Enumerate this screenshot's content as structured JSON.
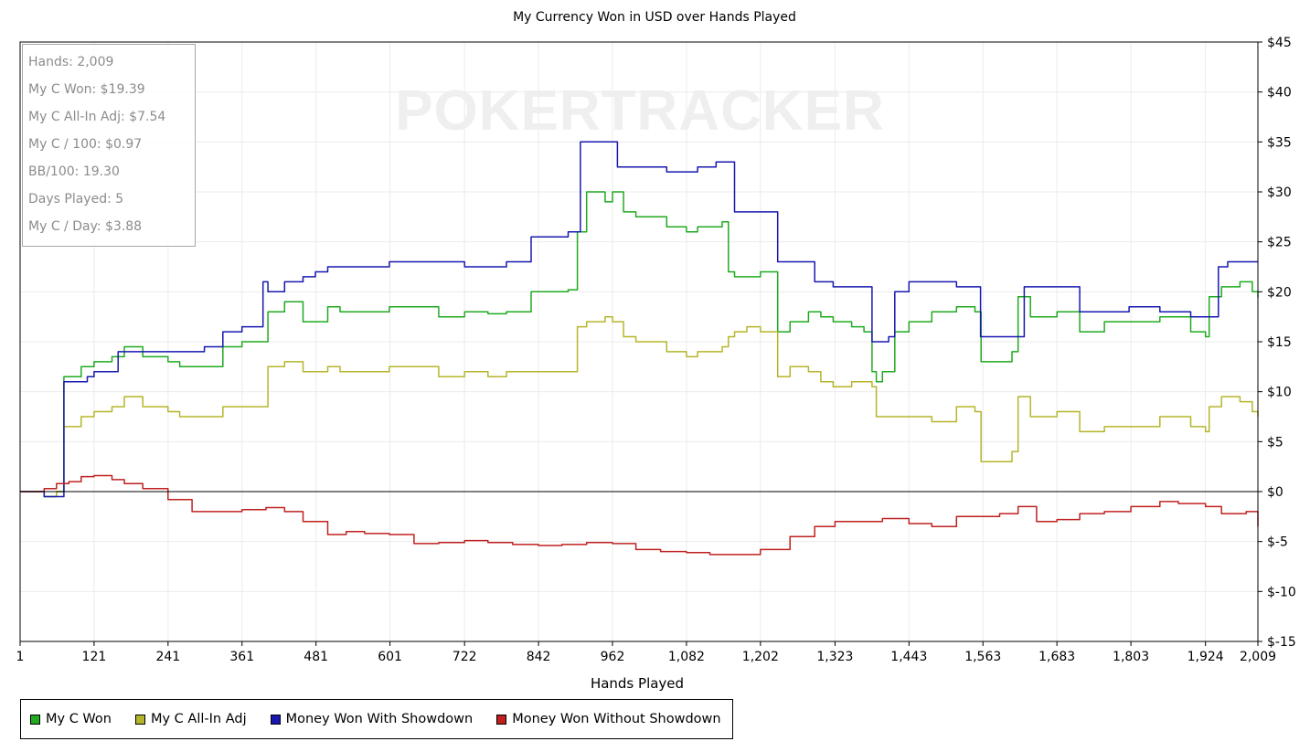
{
  "chart_data": {
    "type": "line",
    "title": "My Currency Won in USD over Hands Played",
    "xlabel": "Hands Played",
    "ylabel": "",
    "xlim": [
      1,
      2009
    ],
    "ylim": [
      -15,
      45
    ],
    "grid": true,
    "legend_position": "bottom",
    "watermark": "POKERTRACKER",
    "x_ticks": [
      1,
      121,
      241,
      361,
      481,
      601,
      722,
      842,
      962,
      1082,
      1202,
      1323,
      1443,
      1563,
      1683,
      1803,
      1924,
      2009
    ],
    "x_tick_labels": [
      "1",
      "121",
      "241",
      "361",
      "481",
      "601",
      "722",
      "842",
      "962",
      "1,082",
      "1,202",
      "1,323",
      "1,443",
      "1,563",
      "1,683",
      "1,803",
      "1,924",
      "2,009"
    ],
    "y_ticks": [
      45,
      40,
      35,
      30,
      25,
      20,
      15,
      10,
      5,
      0,
      -5,
      -10,
      -15
    ],
    "y_tick_labels": [
      "$45",
      "$40",
      "$35",
      "$30",
      "$25",
      "$20",
      "$15",
      "$10",
      "$5",
      "$0",
      "$-5",
      "$-10",
      "$-15"
    ],
    "stats": [
      "Hands: 2,009",
      "My C Won: $19.39",
      "My C All-In Adj: $7.54",
      "My C / 100: $0.97",
      "BB/100: 19.30",
      "Days Played: 5",
      "My C / Day: $3.88"
    ],
    "series": [
      {
        "name": "My C Won",
        "color": "#1faa1f",
        "x": [
          1,
          40,
          60,
          68,
          72,
          100,
          121,
          150,
          170,
          200,
          241,
          260,
          300,
          330,
          361,
          400,
          403,
          430,
          460,
          500,
          520,
          600,
          680,
          722,
          760,
          790,
          830,
          850,
          890,
          905,
          920,
          950,
          962,
          980,
          1000,
          1050,
          1082,
          1100,
          1140,
          1150,
          1160,
          1180,
          1202,
          1230,
          1250,
          1280,
          1300,
          1320,
          1350,
          1370,
          1383,
          1390,
          1400,
          1420,
          1443,
          1480,
          1520,
          1550,
          1560,
          1590,
          1610,
          1620,
          1640,
          1683,
          1700,
          1720,
          1760,
          1800,
          1850,
          1900,
          1924,
          1930,
          1950,
          1980,
          2000,
          2009
        ],
        "y": [
          0,
          -0.5,
          0,
          0,
          11.5,
          12.5,
          13,
          13.5,
          14.5,
          13.5,
          13,
          12.5,
          12.5,
          14.5,
          15,
          15,
          18,
          19,
          17,
          18.5,
          18,
          18.5,
          17.5,
          18,
          17.8,
          18,
          20,
          20,
          20.2,
          26,
          30,
          29,
          30,
          28,
          27.5,
          26.5,
          26,
          26.5,
          27,
          22,
          21.5,
          21.5,
          22,
          16,
          17,
          18,
          17.5,
          17,
          16.5,
          16,
          12,
          11,
          12,
          16,
          17,
          18,
          18.5,
          18,
          13,
          13,
          14,
          19.5,
          17.5,
          18,
          18,
          16,
          17,
          17,
          17.5,
          16,
          15.5,
          19.5,
          20.5,
          21,
          20,
          19.4
        ]
      },
      {
        "name": "My C All-In Adj",
        "color": "#b5b52a",
        "x": [
          1,
          40,
          60,
          68,
          72,
          100,
          121,
          150,
          170,
          200,
          241,
          260,
          300,
          330,
          361,
          400,
          403,
          430,
          460,
          500,
          520,
          600,
          680,
          722,
          760,
          790,
          830,
          850,
          890,
          905,
          920,
          950,
          962,
          980,
          1000,
          1050,
          1082,
          1100,
          1140,
          1150,
          1160,
          1180,
          1202,
          1230,
          1250,
          1280,
          1300,
          1320,
          1350,
          1370,
          1383,
          1390,
          1420,
          1443,
          1480,
          1520,
          1550,
          1560,
          1590,
          1610,
          1620,
          1640,
          1683,
          1700,
          1720,
          1760,
          1800,
          1850,
          1900,
          1924,
          1930,
          1950,
          1980,
          2000,
          2009
        ],
        "y": [
          0,
          -0.5,
          0,
          0,
          6.5,
          7.5,
          8,
          8.5,
          9.5,
          8.5,
          8,
          7.5,
          7.5,
          8.5,
          8.5,
          8.5,
          12.5,
          13,
          12,
          12.5,
          12,
          12.5,
          11.5,
          12,
          11.5,
          12,
          12,
          12,
          12,
          16.5,
          17,
          17.5,
          17,
          15.5,
          15,
          14,
          13.5,
          14,
          14.5,
          15.5,
          16,
          16.5,
          16,
          11.5,
          12.5,
          12,
          11,
          10.5,
          11,
          11,
          10.5,
          7.5,
          7.5,
          7.5,
          7,
          8.5,
          8,
          3,
          3,
          4,
          9.5,
          7.5,
          8,
          8,
          6,
          6.5,
          6.5,
          7.5,
          6.5,
          6,
          8.5,
          9.5,
          9,
          8,
          7.5
        ]
      },
      {
        "name": "Money Won With Showdown",
        "color": "#1818b0",
        "x": [
          1,
          40,
          60,
          68,
          72,
          110,
          121,
          160,
          200,
          241,
          300,
          330,
          361,
          395,
          403,
          430,
          460,
          480,
          500,
          520,
          600,
          680,
          722,
          760,
          790,
          830,
          850,
          890,
          910,
          920,
          960,
          970,
          1000,
          1050,
          1080,
          1100,
          1130,
          1150,
          1160,
          1202,
          1230,
          1270,
          1290,
          1300,
          1320,
          1360,
          1383,
          1410,
          1420,
          1443,
          1520,
          1540,
          1559,
          1600,
          1630,
          1683,
          1720,
          1760,
          1800,
          1850,
          1900,
          1924,
          1945,
          1960,
          2009
        ],
        "y": [
          0,
          -0.5,
          -0.5,
          -0.5,
          11,
          11.5,
          12,
          14,
          14,
          14,
          14.5,
          16,
          16.5,
          21,
          20,
          21,
          21.5,
          22,
          22.5,
          22.5,
          23,
          23,
          22.5,
          22.5,
          23,
          25.5,
          25.5,
          26,
          35,
          35,
          35,
          32.5,
          32.5,
          32,
          32,
          32.5,
          33,
          33,
          28,
          28,
          23,
          23,
          21,
          21,
          20.5,
          20.5,
          15,
          15.5,
          20,
          21,
          20.5,
          20.5,
          15.5,
          15.5,
          20.5,
          20.5,
          18,
          18,
          18.5,
          18,
          17.5,
          17.5,
          22.5,
          23,
          23
        ]
      },
      {
        "name": "Money Won Without Showdown",
        "color": "#c02020",
        "x": [
          1,
          40,
          60,
          80,
          100,
          121,
          150,
          170,
          200,
          241,
          280,
          320,
          361,
          400,
          430,
          460,
          500,
          530,
          560,
          600,
          640,
          680,
          722,
          760,
          800,
          842,
          880,
          920,
          962,
          1000,
          1040,
          1082,
          1120,
          1160,
          1202,
          1250,
          1290,
          1323,
          1360,
          1400,
          1443,
          1480,
          1520,
          1563,
          1590,
          1620,
          1650,
          1683,
          1720,
          1760,
          1803,
          1850,
          1880,
          1924,
          1950,
          1990,
          2009
        ],
        "y": [
          0,
          0.3,
          0.8,
          1,
          1.5,
          1.6,
          1.2,
          0.8,
          0.3,
          -0.8,
          -2,
          -2,
          -1.8,
          -1.6,
          -2,
          -3,
          -4.3,
          -4,
          -4.2,
          -4.3,
          -5.2,
          -5.1,
          -4.9,
          -5.1,
          -5.3,
          -5.4,
          -5.3,
          -5.1,
          -5.2,
          -5.8,
          -6,
          -6.1,
          -6.3,
          -6.3,
          -5.8,
          -4.5,
          -3.5,
          -3,
          -3,
          -2.7,
          -3.2,
          -3.5,
          -2.5,
          -2.5,
          -2.2,
          -1.5,
          -3,
          -2.8,
          -2.2,
          -2,
          -1.5,
          -1,
          -1.2,
          -1.5,
          -2.2,
          -2,
          -3.5
        ]
      }
    ]
  }
}
